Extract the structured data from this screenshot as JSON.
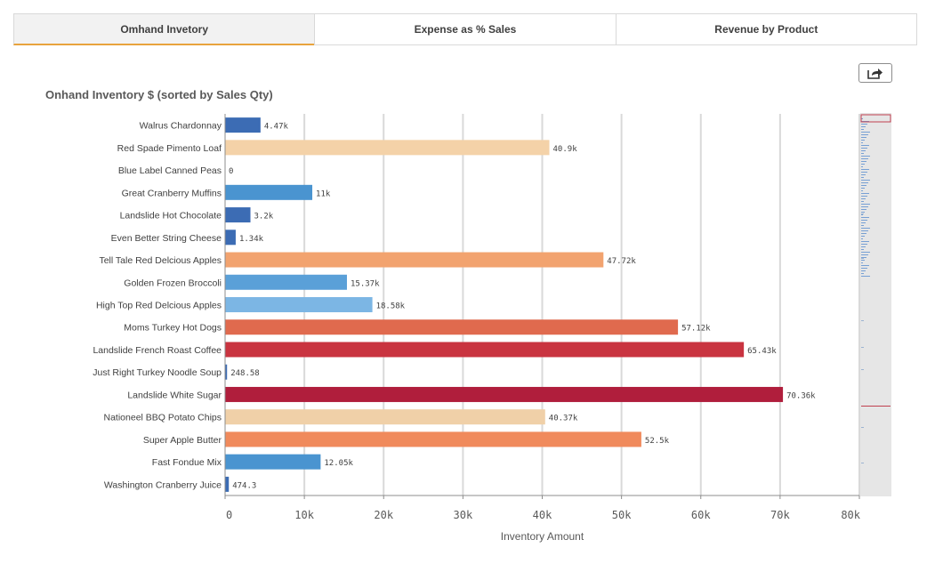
{
  "tabs": [
    {
      "label": "Omhand Invetory",
      "active": true
    },
    {
      "label": "Expense as % Sales",
      "active": false
    },
    {
      "label": "Revenue by Product",
      "active": false
    }
  ],
  "export_icon": "share-arrow-icon",
  "chart_data": {
    "type": "bar",
    "orientation": "horizontal",
    "title": "Onhand Inventory $ (sorted by Sales Qty)",
    "xlabel": "Inventory Amount",
    "ylabel": "",
    "xlim": [
      0,
      80000
    ],
    "xticks": [
      0,
      10000,
      20000,
      30000,
      40000,
      50000,
      60000,
      70000,
      80000
    ],
    "xtick_labels": [
      "0",
      "10k",
      "20k",
      "30k",
      "40k",
      "50k",
      "60k",
      "70k",
      "80k"
    ],
    "grid": true,
    "categories": [
      "Walrus Chardonnay",
      "Red Spade Pimento Loaf",
      "Blue Label Canned Peas",
      "Great Cranberry Muffins",
      "Landslide Hot Chocolate",
      "Even Better String Cheese",
      "Tell Tale Red Delcious Apples",
      "Golden Frozen Broccoli",
      "High Top Red Delcious Apples",
      "Moms Turkey Hot Dogs",
      "Landslide French Roast Coffee",
      "Just Right Turkey Noodle Soup",
      "Landslide White Sugar",
      "Nationeel BBQ Potato Chips",
      "Super Apple Butter",
      "Fast Fondue Mix",
      "Washington Cranberry Juice"
    ],
    "values": [
      4470,
      40900,
      0,
      11000,
      3200,
      1340,
      47720,
      15370,
      18580,
      57120,
      65430,
      248.58,
      70360,
      40370,
      52500,
      12050,
      474.3
    ],
    "value_labels": [
      "4.47k",
      "40.9k",
      "0",
      "11k",
      "3.2k",
      "1.34k",
      "47.72k",
      "15.37k",
      "18.58k",
      "57.12k",
      "65.43k",
      "248.58",
      "70.36k",
      "40.37k",
      "52.5k",
      "12.05k",
      "474.3"
    ],
    "colors": [
      "#3c6cb4",
      "#f4d2a8",
      "#3c6cb4",
      "#4a94d0",
      "#3c6cb4",
      "#3c6cb4",
      "#f2a36f",
      "#5aa0d8",
      "#7cb6e4",
      "#e06a4e",
      "#c93440",
      "#3c6cb4",
      "#b01e3c",
      "#f0d0a8",
      "#f08a5c",
      "#4a94d0",
      "#3c6cb4"
    ]
  }
}
